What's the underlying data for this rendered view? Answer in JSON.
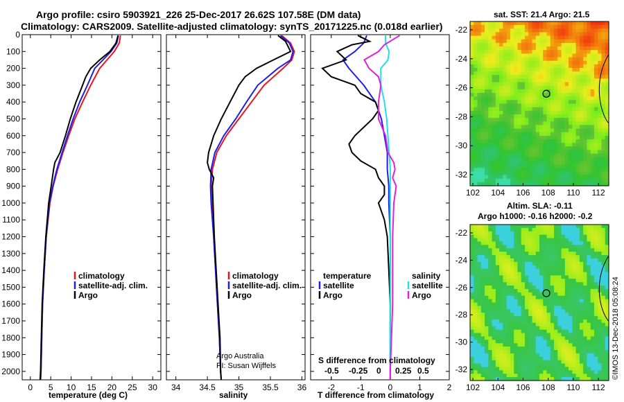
{
  "header": {
    "title_line1": "Argo profile: csiro 5903921_226 25-Dec-2017 26.62S 107.58E (DM data)",
    "title_line2": "Climatology: CARS2009. Satellite-adjusted climatology: synTS_20171225.nc (0.018d earlier)"
  },
  "map1": {
    "title": "sat. SST: 21.4 Argo: 21.5",
    "xticks": [
      "102",
      "104",
      "106",
      "108",
      "110",
      "112"
    ],
    "yticks": [
      "-22",
      "-24",
      "-26",
      "-28",
      "-30",
      "-32"
    ]
  },
  "map2": {
    "title_line1": "Altim. SLA: -0.11",
    "title_line2": "Argo h1000: -0.16 h2000: -0.2",
    "xticks": [
      "102",
      "104",
      "106",
      "108",
      "110",
      "112"
    ],
    "yticks": [
      "-22",
      "-24",
      "-26",
      "-28",
      "-30",
      "-32"
    ]
  },
  "stamp": "©IMOS 13-Dec-2018 05:08:24",
  "credits": {
    "line1": "Argo Australia",
    "line2": "PI: Susan Wijffels"
  },
  "legend_main": {
    "climatology": "climatology",
    "satellite": "satellite-adj. clim.",
    "argo": "Argo"
  },
  "legend_diff": {
    "temperature": "temperature",
    "salinity": "salinity",
    "satellite_t": "satellite",
    "argo_t": "Argo",
    "satellite_s": "satellite",
    "argo_s": "Argo"
  },
  "diff_top_axis": {
    "label": "S difference from climatology",
    "ticks": [
      "-0.5",
      "-0.25",
      "0",
      "0.25",
      "0.5"
    ]
  },
  "colors": {
    "climatology": "#e8141e",
    "satellite": "#1e1ee6",
    "argo": "#000000",
    "sat_salinity": "#20e0e0",
    "argo_salinity": "#e020e0"
  },
  "chart_data": [
    {
      "type": "line",
      "xlabel": "temperature (deg C)",
      "xlim": [
        -2,
        32
      ],
      "ylim": [
        2050,
        0
      ],
      "xticks": [
        0,
        5,
        10,
        15,
        20,
        25,
        30
      ],
      "yticks": [
        0,
        100,
        200,
        300,
        400,
        500,
        600,
        700,
        800,
        900,
        1000,
        1100,
        1200,
        1300,
        1400,
        1500,
        1600,
        1700,
        1800,
        1900,
        2000
      ],
      "series": [
        {
          "name": "climatology",
          "depth": [
            5,
            50,
            100,
            150,
            200,
            300,
            400,
            500,
            600,
            700,
            800,
            900,
            1000,
            1200,
            1400,
            1600,
            1800,
            2000,
            2050
          ],
          "values": [
            22.1,
            21.8,
            20.6,
            18.8,
            17.0,
            14.8,
            12.8,
            10.9,
            9.4,
            8.0,
            6.7,
            5.6,
            4.8,
            3.9,
            3.4,
            3.0,
            2.8,
            2.6,
            2.5
          ]
        },
        {
          "name": "satellite-adj. clim.",
          "depth": [
            5,
            50,
            100,
            150,
            200,
            300,
            400,
            500,
            600,
            700,
            800,
            900,
            1000,
            1200,
            1400,
            1600,
            1800,
            2000,
            2050
          ],
          "values": [
            21.6,
            21.2,
            19.8,
            17.8,
            15.8,
            14.0,
            12.1,
            10.5,
            9.1,
            7.8,
            6.5,
            5.5,
            4.7,
            3.9,
            3.4,
            3.0,
            2.8,
            2.6,
            2.5
          ]
        },
        {
          "name": "Argo",
          "depth": [
            5,
            50,
            100,
            150,
            200,
            250,
            300,
            400,
            500,
            600,
            700,
            760,
            800,
            900,
            1000,
            1200,
            1400,
            1600,
            1800,
            2000,
            2050
          ],
          "values": [
            21.5,
            21.0,
            19.5,
            17.0,
            14.8,
            13.6,
            12.8,
            11.2,
            9.8,
            8.6,
            7.3,
            6.0,
            5.7,
            5.1,
            4.5,
            3.8,
            3.3,
            2.9,
            2.7,
            2.5,
            2.4
          ]
        }
      ]
    },
    {
      "type": "line",
      "xlabel": "salinity",
      "xlim": [
        33.85,
        36.05
      ],
      "ylim": [
        2050,
        0
      ],
      "xticks": [
        34,
        34.5,
        35,
        35.5,
        36
      ],
      "series": [
        {
          "name": "climatology",
          "depth": [
            5,
            50,
            100,
            150,
            200,
            300,
            400,
            500,
            600,
            700,
            800,
            900,
            1000,
            1200,
            1400,
            1600,
            1800,
            2000,
            2050
          ],
          "values": [
            35.68,
            35.82,
            35.88,
            35.84,
            35.7,
            35.4,
            35.2,
            35.0,
            34.8,
            34.65,
            34.58,
            34.56,
            34.57,
            34.6,
            34.63,
            34.66,
            34.69,
            34.71,
            34.72
          ]
        },
        {
          "name": "satellite-adj. clim.",
          "depth": [
            5,
            50,
            100,
            150,
            200,
            300,
            400,
            500,
            600,
            700,
            800,
            900,
            1000,
            1200,
            1400,
            1600,
            1800,
            2000,
            2050
          ],
          "values": [
            35.66,
            35.8,
            35.86,
            35.82,
            35.62,
            35.3,
            35.12,
            34.95,
            34.76,
            34.62,
            34.56,
            34.55,
            34.56,
            34.6,
            34.63,
            34.66,
            34.69,
            34.71,
            34.72
          ]
        },
        {
          "name": "Argo",
          "depth": [
            5,
            40,
            100,
            150,
            200,
            250,
            300,
            400,
            500,
            600,
            700,
            760,
            800,
            850,
            900,
            1000,
            1200,
            1400,
            1600,
            1800,
            2000,
            2050
          ],
          "values": [
            35.62,
            35.74,
            35.82,
            35.55,
            35.28,
            35.1,
            35.0,
            34.86,
            34.72,
            34.6,
            34.52,
            34.5,
            34.53,
            34.6,
            34.58,
            34.59,
            34.61,
            34.64,
            34.67,
            34.7,
            34.71,
            34.72
          ]
        }
      ]
    },
    {
      "type": "line",
      "xlabel": "T difference from climatology",
      "xlim": [
        -2.7,
        2.0
      ],
      "ylim": [
        2050,
        0
      ],
      "xticks": [
        -2,
        -1,
        0,
        1,
        2
      ],
      "top_axis": {
        "label": "S difference from climatology",
        "xlim": [
          -0.675,
          0.5
        ],
        "xticks": [
          -0.5,
          -0.25,
          0,
          0.25,
          0.5
        ]
      },
      "series": [
        {
          "name": "satellite (temperature)",
          "depth": [
            5,
            50,
            100,
            150,
            200,
            300,
            400,
            500,
            600,
            700,
            800,
            900,
            1000,
            1200,
            1400,
            1600,
            1800,
            2000,
            2050
          ],
          "values": [
            -0.8,
            -0.9,
            -1.2,
            -1.6,
            -1.4,
            -0.9,
            -0.5,
            -0.3,
            -0.2,
            -0.1,
            -0.1,
            -0.05,
            -0.05,
            0,
            0,
            0,
            0,
            0,
            0
          ]
        },
        {
          "name": "Argo (temperature)",
          "depth": [
            5,
            40,
            60,
            100,
            150,
            200,
            250,
            300,
            350,
            400,
            450,
            500,
            550,
            600,
            650,
            700,
            750,
            800,
            850,
            900,
            950,
            1000,
            1100,
            1200,
            1400,
            1600,
            1800,
            2000,
            2050
          ],
          "values": [
            -1.1,
            -0.7,
            -1.3,
            -1.8,
            -1.5,
            -2.3,
            -2.0,
            -1.2,
            -1.0,
            -0.5,
            -0.4,
            -0.6,
            -0.9,
            -1.2,
            -1.4,
            -1.3,
            -1.0,
            -0.5,
            -0.4,
            -0.2,
            -0.2,
            -0.4,
            -0.2,
            -0.1,
            -0.05,
            0,
            0,
            0,
            0
          ]
        },
        {
          "name": "satellite (salinity)",
          "depth": [
            5,
            50,
            100,
            150,
            200,
            300,
            400,
            500,
            600,
            700,
            800,
            900,
            1000,
            1200,
            1400,
            1600,
            1800,
            2000,
            2050
          ],
          "values": [
            -0.04,
            -0.04,
            -0.01,
            -0.02,
            -0.08,
            -0.08,
            -0.05,
            -0.03,
            -0.02,
            -0.01,
            0,
            0,
            0,
            0,
            0,
            0,
            0,
            0,
            0
          ]
        },
        {
          "name": "Argo (salinity)",
          "depth": [
            5,
            30,
            60,
            100,
            150,
            200,
            250,
            300,
            400,
            500,
            600,
            700,
            760,
            800,
            850,
            900,
            1000,
            1200,
            1400,
            1600,
            1800,
            2000,
            2050
          ],
          "values": [
            0.08,
            0.02,
            -0.05,
            -0.1,
            -0.22,
            -0.18,
            -0.1,
            -0.08,
            -0.1,
            -0.1,
            -0.04,
            -0.02,
            0.03,
            0.04,
            0.02,
            0.05,
            0.03,
            0.02,
            0.02,
            0.02,
            0.01,
            0,
            0
          ]
        }
      ]
    }
  ]
}
